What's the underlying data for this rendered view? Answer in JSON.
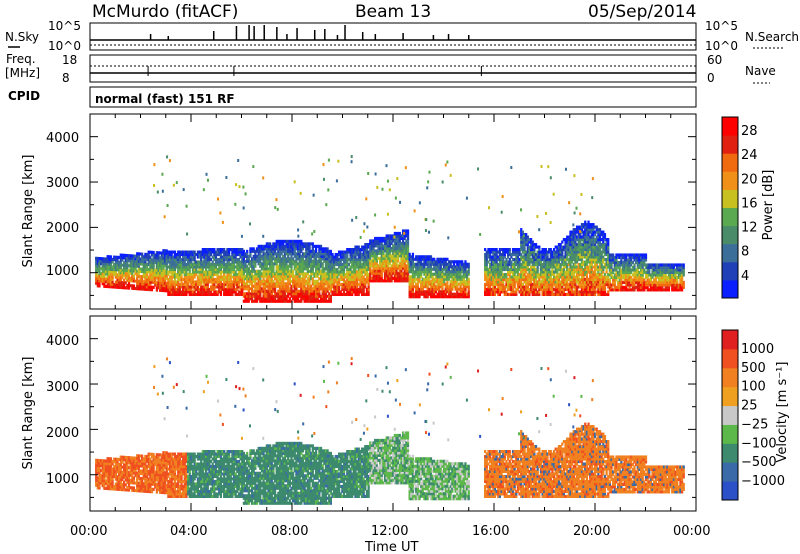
{
  "header": {
    "station": "McMurdo (fitACF)",
    "beam": "Beam 13",
    "date": "05/Sep/2014"
  },
  "noise_panel": {
    "left_label": "N.Sky",
    "right_label": "N.Search",
    "left_ticks": [
      "10^5",
      "10^0"
    ],
    "right_ticks": [
      "10^5",
      "10^0"
    ]
  },
  "freq_panel": {
    "left_label_1": "Freq.",
    "left_label_2": "[MHz]",
    "right_label": "Nave",
    "left_ticks": [
      "18",
      "8"
    ],
    "right_ticks": [
      "60",
      "0"
    ]
  },
  "cpid_panel": {
    "label": "CPID",
    "text": "normal (fast) 151 RF"
  },
  "colors": {
    "power_scale": [
      "#0a1fff",
      "#2040b8",
      "#3c6e9a",
      "#4a8c6a",
      "#5aa850",
      "#c8c020",
      "#f09018",
      "#f06a10",
      "#e02010",
      "#ff0000"
    ],
    "velocity_scale": [
      "#2b50c8",
      "#3a6aa8",
      "#3d8a6e",
      "#5cb84a",
      "#c8c8c8",
      "#f0a020",
      "#f08020",
      "#f05020",
      "#e02020"
    ]
  },
  "chart_data": [
    {
      "type": "heatmap",
      "panel": "power",
      "ylabel": "Slant Range [km]",
      "y_ticks": [
        "1000",
        "2000",
        "3000",
        "4000"
      ],
      "ylim": [
        200,
        4500
      ],
      "xlim": [
        "00:00",
        "24:00"
      ],
      "colorbar_label": "Power [dB]",
      "colorbar_ticks": [
        "4",
        "8",
        "12",
        "16",
        "20",
        "24",
        "28"
      ],
      "colorbar_range": [
        0,
        30
      ]
    },
    {
      "type": "heatmap",
      "panel": "velocity",
      "ylabel": "Slant Range [km]",
      "y_ticks": [
        "1000",
        "2000",
        "3000",
        "4000"
      ],
      "ylim": [
        200,
        4500
      ],
      "xlim": [
        "00:00",
        "24:00"
      ],
      "colorbar_label": "Velocity [m s⁻¹]",
      "colorbar_ticks": [
        "1000",
        "500",
        "100",
        "25",
        "−25",
        "−100",
        "−500",
        "−1000"
      ]
    }
  ],
  "x_axis": {
    "ticks": [
      "00:00",
      "04:00",
      "08:00",
      "12:00",
      "16:00",
      "20:00",
      "00:00"
    ],
    "label": "Time UT"
  }
}
